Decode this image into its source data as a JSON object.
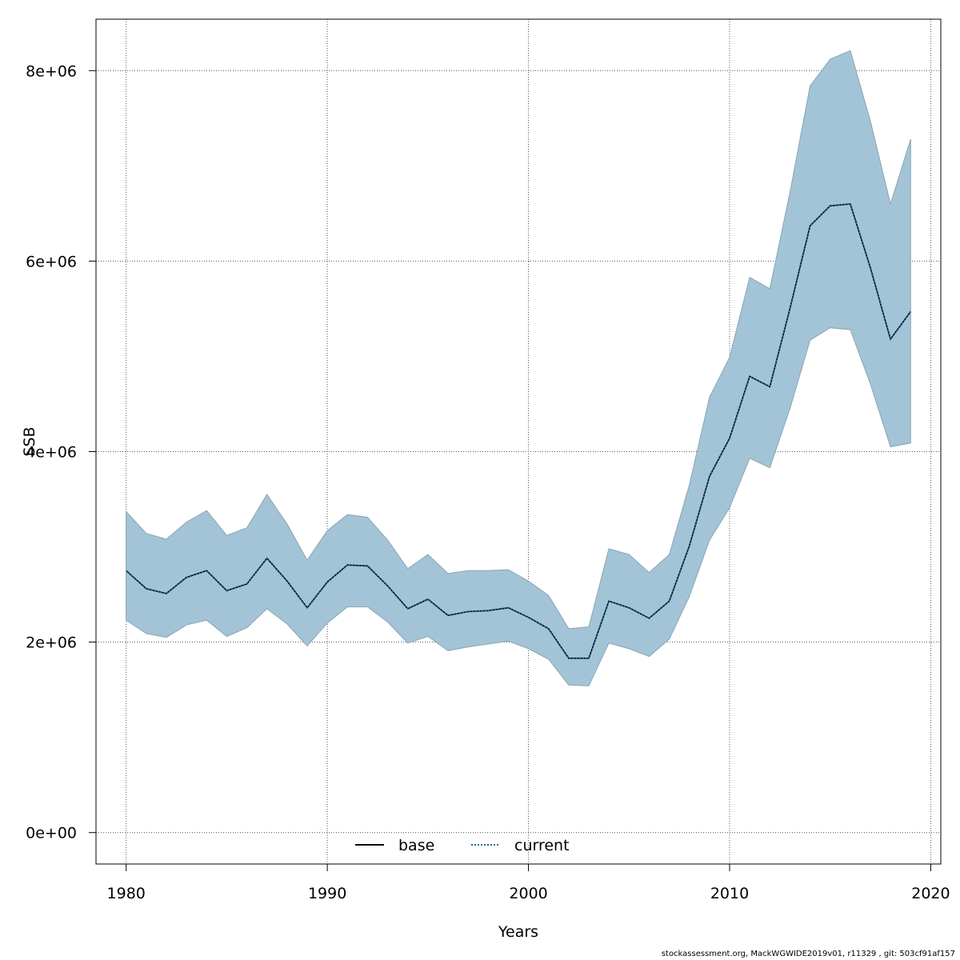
{
  "chart_data": {
    "type": "line",
    "xlabel": "Years",
    "ylabel": "SSB",
    "xlim": [
      1978.5,
      2020.5
    ],
    "ylim": [
      -330000,
      8540000
    ],
    "x_ticks": [
      1980,
      1990,
      2000,
      2010,
      2020
    ],
    "x_tick_labels": [
      "1980",
      "1990",
      "2000",
      "2010",
      "2020"
    ],
    "y_ticks": [
      0,
      2000000,
      4000000,
      6000000,
      8000000
    ],
    "y_tick_labels": [
      "0e+00",
      "2e+06",
      "4e+06",
      "6e+06",
      "8e+06"
    ],
    "grid": true,
    "legend_position": "bottom",
    "x": [
      1980,
      1981,
      1982,
      1983,
      1984,
      1985,
      1986,
      1987,
      1988,
      1989,
      1990,
      1991,
      1992,
      1993,
      1994,
      1995,
      1996,
      1997,
      1998,
      1999,
      2000,
      2001,
      2002,
      2003,
      2004,
      2005,
      2006,
      2007,
      2008,
      2009,
      2010,
      2011,
      2012,
      2013,
      2014,
      2015,
      2016,
      2017,
      2018,
      2019
    ],
    "band": {
      "lower": [
        2230000,
        2090000,
        2050000,
        2180000,
        2230000,
        2060000,
        2150000,
        2350000,
        2190000,
        1960000,
        2200000,
        2370000,
        2370000,
        2210000,
        1990000,
        2060000,
        1910000,
        1950000,
        1980000,
        2010000,
        1930000,
        1820000,
        1550000,
        1540000,
        1990000,
        1930000,
        1850000,
        2030000,
        2480000,
        3070000,
        3410000,
        3930000,
        3830000,
        4450000,
        5170000,
        5300000,
        5280000,
        4710000,
        4050000,
        4090000
      ],
      "upper": [
        3370000,
        3140000,
        3080000,
        3260000,
        3380000,
        3120000,
        3200000,
        3550000,
        3240000,
        2860000,
        3170000,
        3340000,
        3310000,
        3070000,
        2770000,
        2920000,
        2720000,
        2750000,
        2750000,
        2760000,
        2640000,
        2490000,
        2140000,
        2160000,
        2980000,
        2920000,
        2730000,
        2920000,
        3650000,
        4570000,
        4990000,
        5830000,
        5710000,
        6720000,
        7840000,
        8120000,
        8210000,
        7470000,
        6600000,
        7280000
      ],
      "color": "#a3c4d6"
    },
    "series": [
      {
        "name": "base",
        "color": "#000000",
        "style": "solid",
        "values": [
          2750000,
          2560000,
          2510000,
          2680000,
          2750000,
          2540000,
          2610000,
          2880000,
          2640000,
          2360000,
          2630000,
          2810000,
          2800000,
          2590000,
          2350000,
          2450000,
          2280000,
          2320000,
          2330000,
          2360000,
          2260000,
          2140000,
          1830000,
          1830000,
          2430000,
          2360000,
          2250000,
          2430000,
          3010000,
          3740000,
          4140000,
          4790000,
          4680000,
          5500000,
          6370000,
          6580000,
          6600000,
          5930000,
          5180000,
          5470000
        ]
      },
      {
        "name": "current",
        "color": "#1a6fa0",
        "style": "dotted",
        "values": [
          2750000,
          2560000,
          2510000,
          2680000,
          2750000,
          2540000,
          2610000,
          2880000,
          2640000,
          2360000,
          2630000,
          2810000,
          2800000,
          2590000,
          2350000,
          2450000,
          2280000,
          2320000,
          2330000,
          2360000,
          2260000,
          2140000,
          1830000,
          1830000,
          2430000,
          2360000,
          2250000,
          2430000,
          3010000,
          3740000,
          4140000,
          4790000,
          4680000,
          5500000,
          6370000,
          6580000,
          6600000,
          5930000,
          5180000,
          5470000
        ]
      }
    ]
  },
  "footer": {
    "text": "stockassessment.org, MackWGWIDE2019v01, r11329 , git: 503cf91af157"
  }
}
